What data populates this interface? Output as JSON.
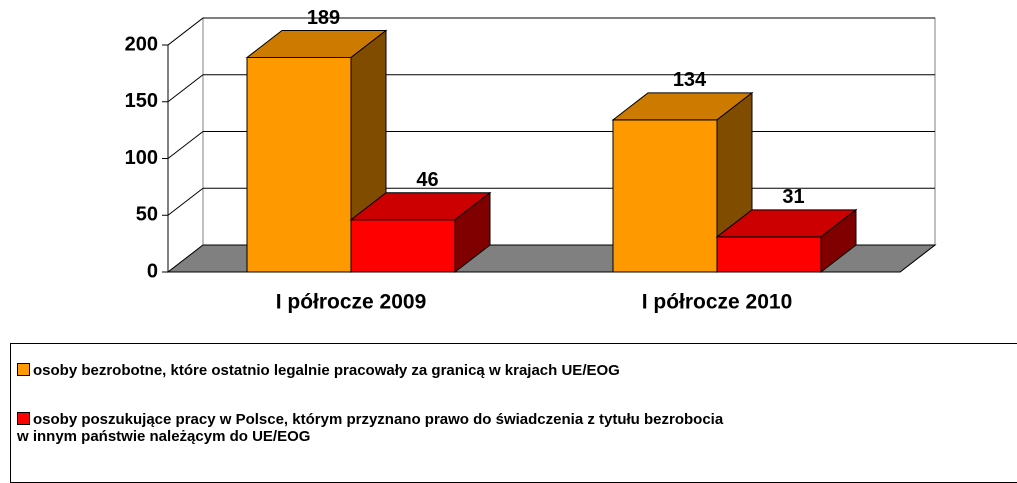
{
  "chart_data": {
    "type": "bar3d",
    "categories": [
      "I półrocze 2009",
      "I półrocze 2010"
    ],
    "series": [
      {
        "name": "osoby bezrobotne, które ostatnio legalnie pracowały za granicą w krajach UE/EOG",
        "color": "#FF9900",
        "values": [
          189,
          134
        ]
      },
      {
        "name": "osoby poszukujące pracy w Polsce, którym przyznano prawo do świadczenia z tytułu bezrobocia\nw innym państwie należącym do UE/EOG",
        "color": "#FF0000",
        "values": [
          46,
          31
        ]
      }
    ],
    "ylim": [
      0,
      200
    ],
    "yticks": [
      0,
      50,
      100,
      150,
      200
    ],
    "grid": true
  }
}
